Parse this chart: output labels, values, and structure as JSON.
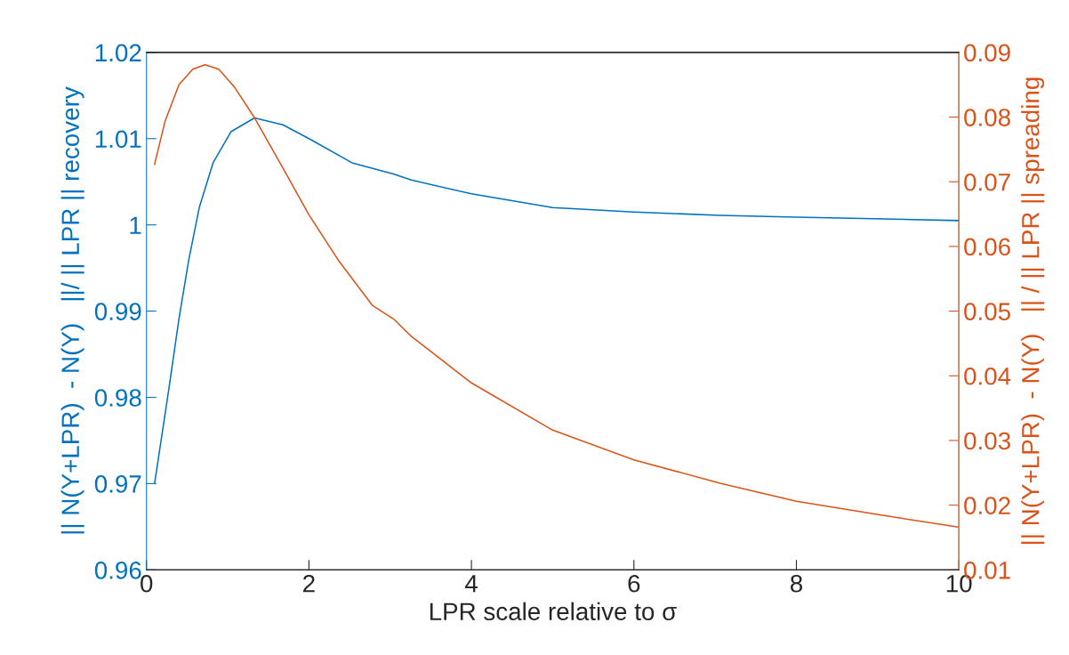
{
  "chart_data": {
    "type": "line",
    "xlabel": "LPR scale relative to σ",
    "ylabel": "|| N(Y+LPR)  - N(Y)   ||/ || LPR || recovery",
    "y2label": "|| N(Y+LPR)  - N(Y)   || / || LPR || spreading",
    "xlim": [
      0,
      10
    ],
    "xticks": [
      0,
      2,
      4,
      6,
      8,
      10
    ],
    "ylim": [
      0.96,
      1.02
    ],
    "yticks": [
      0.96,
      0.97,
      0.98,
      0.99,
      1,
      1.01,
      1.02
    ],
    "y2lim": [
      0.01,
      0.09
    ],
    "y2ticks": [
      0.01,
      0.02,
      0.03,
      0.04,
      0.05,
      0.06,
      0.07,
      0.08,
      0.09
    ],
    "grid": false,
    "legend": false,
    "series": [
      {
        "color": "#0072bd",
        "x": [
          0.1,
          0.27,
          0.4,
          0.52,
          0.65,
          0.82,
          1.04,
          1.33,
          1.68,
          2.0,
          2.53,
          3.04,
          3.26,
          4.0,
          5.0,
          6.0,
          7.06,
          8.0,
          9.08,
          10.0
        ],
        "values": [
          0.97,
          0.9806,
          0.9891,
          0.9959,
          1.002,
          1.0072,
          1.0108,
          1.0124,
          1.0116,
          1.01,
          1.0072,
          1.0059,
          1.0052,
          1.0036,
          1.002,
          1.0015,
          1.0011,
          1.0009,
          1.0007,
          1.0005
        ]
      },
      {
        "color": "#d95319",
        "axis": "y2",
        "x": [
          0.1,
          0.23,
          0.4,
          0.57,
          0.72,
          0.89,
          1.08,
          1.33,
          1.68,
          2.0,
          2.36,
          2.78,
          3.04,
          3.26,
          4.0,
          5.0,
          6.0,
          7.06,
          8.0,
          9.08,
          10.0
        ],
        "values": [
          0.0727,
          0.0794,
          0.085,
          0.0874,
          0.0881,
          0.0874,
          0.0847,
          0.0799,
          0.0721,
          0.0649,
          0.0579,
          0.0509,
          0.0488,
          0.0461,
          0.0389,
          0.0316,
          0.027,
          0.0234,
          0.0206,
          0.0184,
          0.0166
        ]
      }
    ]
  }
}
